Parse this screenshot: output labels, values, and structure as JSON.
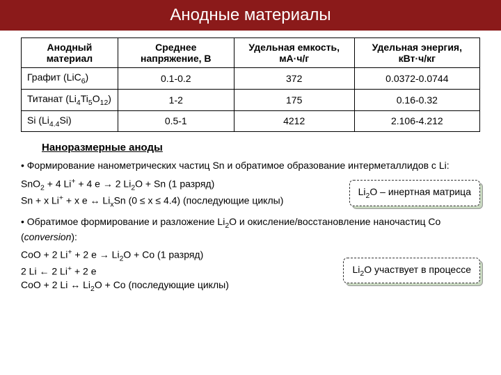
{
  "title": "Анодные материалы",
  "table": {
    "headers": [
      "Анодный материал",
      "Среднее напряжение, В",
      "Удельная емкость, мА·ч/г",
      "Удельная энергия, кВт·ч/кг"
    ],
    "rows": [
      {
        "material_html": "Графит (LiC<sub>6</sub>)",
        "voltage": "0.1-0.2",
        "capacity": "372",
        "energy": "0.0372-0.0744"
      },
      {
        "material_html": "Титанат (Li<sub>4</sub>Ti<sub>5</sub>O<sub>12</sub>)",
        "voltage": "1-2",
        "capacity": "175",
        "energy": "0.16-0.32"
      },
      {
        "material_html": "Si (Li<sub>4.4</sub>Si)",
        "voltage": "0.5-1",
        "capacity": "4212",
        "energy": "2.106-4.212"
      }
    ]
  },
  "section_title": "Наноразмерные аноды",
  "bullet1_html": "• Формирование нанометрических частиц Sn и обратимое образование интерметаллидов с Li:",
  "eq1_html": "SnO<sub>2</sub> + 4 Li<sup>+</sup> + 4 e → 2 Li<sub>2</sub>O + Sn (1 разряд)",
  "eq2_html": "Sn + x Li<sup>+</sup> + x e ↔ Li<sub>x</sub>Sn (0 ≤ x ≤ 4.4) (последующие циклы)",
  "callout1_html": "Li<sub>2</sub>O – инертная матрица",
  "bullet2_html": "• Обратимое формирование и разложение Li<sub>2</sub>O и окисление/восстановление наночастиц Co (<span class=\"italic\">conversion</span>):",
  "eq3_html": "CoO + 2 Li<sup>+</sup> + 2 e → Li<sub>2</sub>O + Co (1 разряд)",
  "eq4_html": "2 Li ← 2 Li<sup>+</sup> + 2 e",
  "eq5_html": "CoO + 2 Li ↔ Li<sub>2</sub>O + Co (последующие циклы)",
  "callout2_html": "Li<sub>2</sub>O участвует в процессе",
  "colors": {
    "title_bg": "#8b1a1a",
    "title_fg": "#ffffff",
    "callout_shadow": "#c8d8c0",
    "border": "#000000"
  }
}
